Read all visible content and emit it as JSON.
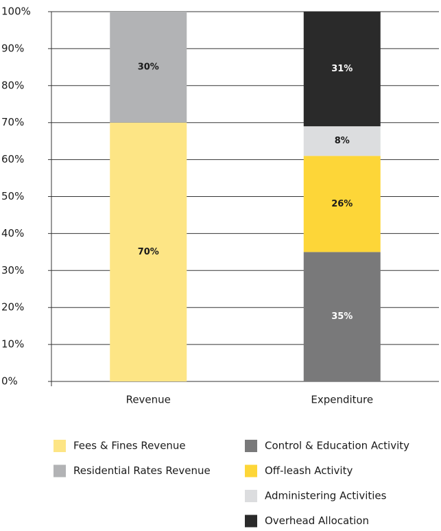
{
  "chart_data": {
    "type": "stacked_bar",
    "categories": [
      "Revenue",
      "Expenditure"
    ],
    "series": [
      {
        "name": "Fees & Fines Revenue",
        "color": "#fde585",
        "values": [
          70,
          null
        ],
        "value_labels": [
          "70%",
          null
        ]
      },
      {
        "name": "Residential Rates Revenue",
        "color": "#b2b3b5",
        "values": [
          30,
          null
        ],
        "value_labels": [
          "30%",
          null
        ]
      },
      {
        "name": "Control & Education Activity",
        "color": "#79797a",
        "values": [
          null,
          35
        ],
        "value_labels": [
          null,
          "35%"
        ]
      },
      {
        "name": "Off-leash Activity",
        "color": "#fdd638",
        "values": [
          null,
          26
        ],
        "value_labels": [
          null,
          "26%"
        ]
      },
      {
        "name": "Administering Activities",
        "color": "#dcdddf",
        "values": [
          null,
          8
        ],
        "value_labels": [
          null,
          "8%"
        ]
      },
      {
        "name": "Overhead Allocation",
        "color": "#2a2a2a",
        "values": [
          null,
          31
        ],
        "value_labels": [
          null,
          "31%"
        ]
      }
    ],
    "ylim": [
      0,
      100
    ],
    "yticks": [
      {
        "value": 0,
        "label": "0%"
      },
      {
        "value": 10,
        "label": "10%"
      },
      {
        "value": 20,
        "label": "20%"
      },
      {
        "value": 30,
        "label": "30%"
      },
      {
        "value": 40,
        "label": "40%"
      },
      {
        "value": 50,
        "label": "50%"
      },
      {
        "value": 60,
        "label": "60%"
      },
      {
        "value": 70,
        "label": "70%"
      },
      {
        "value": 80,
        "label": "80%"
      },
      {
        "value": 90,
        "label": "90%"
      },
      {
        "value": 100,
        "label": "100%"
      }
    ],
    "grid": true,
    "legend": "bottom"
  }
}
